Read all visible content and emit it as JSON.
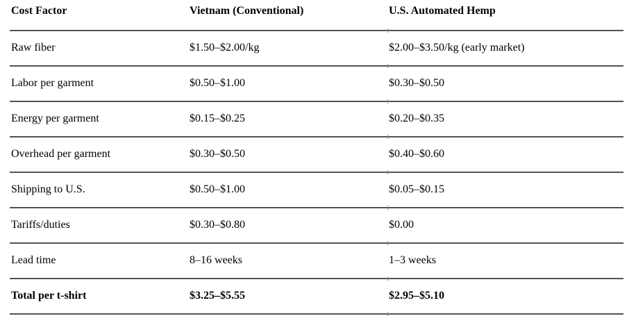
{
  "table": {
    "columns": [
      "Cost Factor",
      "Vietnam (Conventional)",
      "U.S. Automated Hemp"
    ],
    "rows": [
      {
        "factor": "Raw fiber",
        "vietnam": "$1.50–$2.00/kg",
        "us_hemp": "$2.00–$3.50/kg (early market)"
      },
      {
        "factor": "Labor per garment",
        "vietnam": "$0.50–$1.00",
        "us_hemp": "$0.30–$0.50"
      },
      {
        "factor": "Energy per garment",
        "vietnam": "$0.15–$0.25",
        "us_hemp": "$0.20–$0.35"
      },
      {
        "factor": "Overhead per garment",
        "vietnam": "$0.30–$0.50",
        "us_hemp": "$0.40–$0.60"
      },
      {
        "factor": "Shipping to U.S.",
        "vietnam": "$0.50–$1.00",
        "us_hemp": "$0.05–$0.15"
      },
      {
        "factor": "Tariffs/duties",
        "vietnam": "$0.30–$0.80",
        "us_hemp": "$0.00"
      },
      {
        "factor": "Lead time",
        "vietnam": "8–16 weeks",
        "us_hemp": "1–3 weeks"
      },
      {
        "factor": "Total per t-shirt",
        "vietnam": "$3.25–$5.55",
        "us_hemp": "$2.95–$5.10"
      }
    ],
    "colors": {
      "rule_dark": "#3d3d3d",
      "rule_light": "#969696",
      "text": "#000000",
      "background": "#ffffff"
    }
  }
}
